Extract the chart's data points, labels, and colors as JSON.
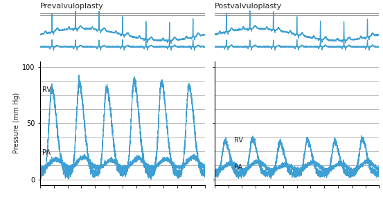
{
  "title_left": "Prevalvuloplasty",
  "title_right": "Postvalvuloplasty",
  "ylabel": "Pressure (mm Hg)",
  "ylim": [
    -5,
    105
  ],
  "ytick_vals": [
    0,
    50,
    100
  ],
  "ytick_labels": [
    "0",
    "50",
    "100"
  ],
  "bg_color": "#ffffff",
  "line_color": "#3d9fd3",
  "grid_color": "#999999",
  "text_color": "#222222",
  "rv_label_pre": "RV",
  "pa_label_pre": "PA",
  "rv_label_post": "RV",
  "pa_label_post": "PA",
  "n_beats_ecg": 7,
  "n_beats_pressure": 6,
  "grid_lines": [
    0,
    12.5,
    25,
    37.5,
    50,
    62.5,
    75,
    87.5,
    100
  ]
}
